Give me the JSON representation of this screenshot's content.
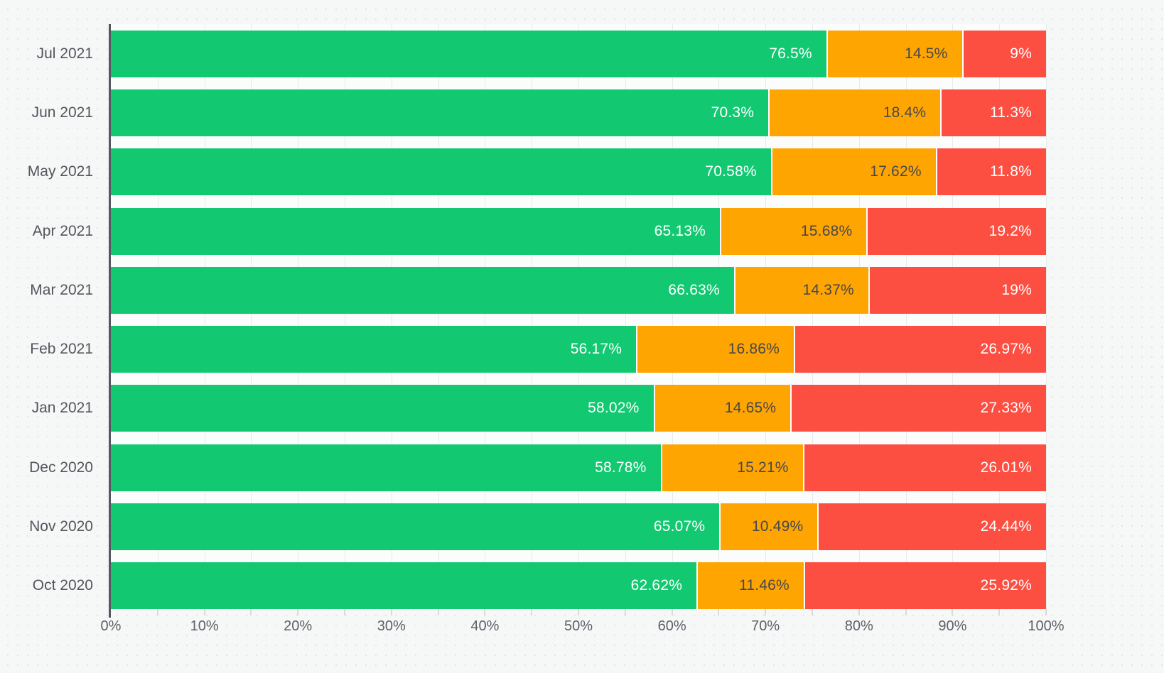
{
  "page": {
    "background_color": "#f6f7f7",
    "plot_background_color": "#fbfcfc",
    "gridline_color": "#e9ebeb",
    "axis_line_color": "#54575e",
    "tick_color": "#d9dcdc",
    "axis_text_color": "#5d6066",
    "category_text_color": "#53565c"
  },
  "chart_data": {
    "type": "bar",
    "orientation": "horizontal",
    "stacked": true,
    "title": "",
    "xlabel": "",
    "ylabel": "",
    "legend": "none",
    "xlim": [
      0,
      100
    ],
    "x_tick_step": 10,
    "minor_grid_step": 5,
    "x_ticks": [
      "0%",
      "10%",
      "20%",
      "30%",
      "40%",
      "50%",
      "60%",
      "70%",
      "80%",
      "90%",
      "100%"
    ],
    "categories": [
      "Jul 2021",
      "Jun 2021",
      "May 2021",
      "Apr 2021",
      "Mar 2021",
      "Feb 2021",
      "Jan 2021",
      "Dec 2020",
      "Nov 2020",
      "Oct 2020"
    ],
    "series": [
      {
        "name": "green",
        "color": "#12c972",
        "label_color": "#ffffff",
        "values": [
          76.5,
          70.3,
          70.58,
          65.13,
          66.63,
          56.17,
          58.02,
          58.78,
          65.07,
          62.62
        ],
        "labels": [
          "76.5%",
          "70.3%",
          "70.58%",
          "65.13%",
          "66.63%",
          "56.17%",
          "58.02%",
          "58.78%",
          "65.07%",
          "62.62%"
        ]
      },
      {
        "name": "orange",
        "color": "#ffa502",
        "label_color": "#45484e",
        "values": [
          14.5,
          18.4,
          17.62,
          15.68,
          14.37,
          16.86,
          14.65,
          15.21,
          10.49,
          11.46
        ],
        "labels": [
          "14.5%",
          "18.4%",
          "17.62%",
          "15.68%",
          "14.37%",
          "16.86%",
          "14.65%",
          "15.21%",
          "10.49%",
          "11.46%"
        ]
      },
      {
        "name": "red",
        "color": "#fc4f42",
        "label_color": "#ffffff",
        "values": [
          9,
          11.3,
          11.8,
          19.2,
          19,
          26.97,
          27.33,
          26.01,
          24.44,
          25.92
        ],
        "labels": [
          "9%",
          "11.3%",
          "11.8%",
          "19.2%",
          "19%",
          "26.97%",
          "27.33%",
          "26.01%",
          "24.44%",
          "25.92%"
        ]
      }
    ]
  }
}
